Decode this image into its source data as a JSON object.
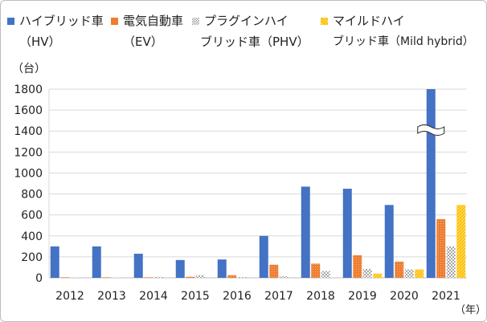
{
  "chart_data": {
    "type": "bar",
    "categories": [
      "2012",
      "2013",
      "2014",
      "2015",
      "2016",
      "2017",
      "2018",
      "2019",
      "2020",
      "2021"
    ],
    "series": [
      {
        "name": "ハイブリッド車（HV）",
        "name_line1": "ハイブリッド車",
        "name_line2": "（HV）",
        "color": "#4472C4",
        "pattern": "solid",
        "values": [
          300,
          300,
          230,
          170,
          175,
          400,
          870,
          850,
          695,
          1800
        ]
      },
      {
        "name": "電気自動車（EV）",
        "name_line1": "電気自動車",
        "name_line2": "（EV）",
        "color": "#ED7D31",
        "pattern": "dots",
        "values": [
          5,
          5,
          5,
          10,
          25,
          125,
          135,
          215,
          155,
          560
        ]
      },
      {
        "name": "プラグインハイブリッド車（PHV）",
        "name_line1": "プラグインハイ",
        "name_line2": "ブリッド車（PHV）",
        "color": "#A5A5A5",
        "pattern": "checker",
        "values": [
          2,
          2,
          10,
          25,
          8,
          15,
          65,
          85,
          80,
          300
        ]
      },
      {
        "name": "マイルドハイブリッド車（Mild hybrid）",
        "name_line1": "マイルドハイ",
        "name_line2": "ブリッド車（Mild hybrid）",
        "color": "#FFC000",
        "pattern": "stripes",
        "values": [
          0,
          0,
          0,
          0,
          0,
          0,
          0,
          40,
          80,
          695
        ]
      }
    ],
    "ylim": [
      0,
      1800
    ],
    "yticks": [
      0,
      200,
      400,
      600,
      800,
      1000,
      1200,
      1400,
      1600,
      1800
    ],
    "ylabel": "（台）",
    "xlabel": "（年）",
    "grid": true,
    "legend_position": "top",
    "axis_break": {
      "category": "2021",
      "series": "ハイブリッド車（HV）"
    }
  }
}
